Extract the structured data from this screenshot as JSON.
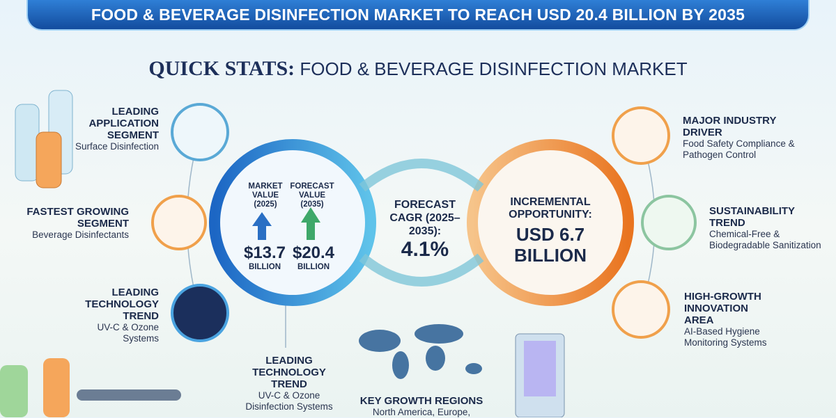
{
  "header": {
    "title": "FOOD & BEVERAGE DISINFECTION MARKET TO REACH USD 20.4 BILLION BY 2035"
  },
  "subtitle": {
    "lead": "QUICK STATS:",
    "text": "FOOD & BEVERAGE DISINFECTION MARKET"
  },
  "left_items": [
    {
      "heading": "LEADING APPLICATION SEGMENT",
      "text": "Surface Disinfection"
    },
    {
      "heading": "FASTEST GROWING SEGMENT",
      "text": "Beverage Disinfectants"
    },
    {
      "heading": "LEADING TECHNOLOGY TREND",
      "text": "UV-C & Ozone Systems"
    }
  ],
  "market_values": [
    {
      "label": "MARKET VALUE (2025)",
      "value": "$13.7",
      "unit": "BILLION"
    },
    {
      "label": "FORECAST VALUE (2035)",
      "value": "$20.4",
      "unit": "BILLION"
    }
  ],
  "cagr": {
    "label": "FORECAST CAGR (2025–2035):",
    "value": "4.1%"
  },
  "opportunity": {
    "label": "INCREMENTAL OPPORTUNITY:",
    "value": "USD 6.7 BILLION"
  },
  "bottom_item": {
    "heading": "LEADING TECHNOLOGY TREND",
    "text": "UV-C & Ozone Disinfection Systems"
  },
  "regions": {
    "heading": "KEY GROWTH REGIONS",
    "text": "North America, Europe,"
  },
  "right_items": [
    {
      "heading": "MAJOR INDUSTRY DRIVER",
      "text": "Food Safety Compliance & Pathogen Control"
    },
    {
      "heading": "SUSTAINABILITY TREND",
      "text": "Chemical-Free & Biodegradable Sanitization"
    },
    {
      "heading": "HIGH-GROWTH INNOVATION AREA",
      "text": "AI-Based Hygiene Monitoring Systems"
    }
  ]
}
